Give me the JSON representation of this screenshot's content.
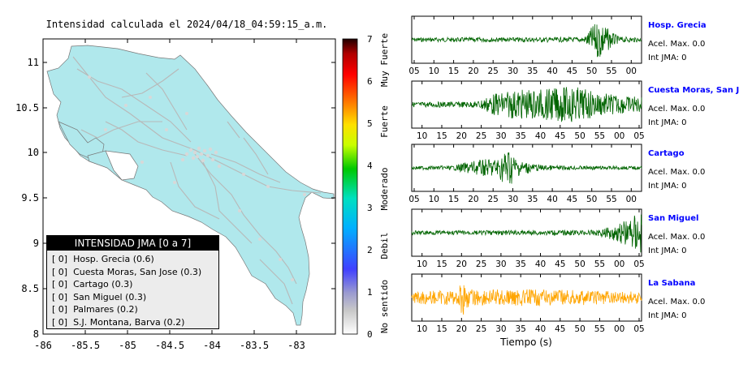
{
  "map": {
    "title": "Intensidad calculada el 2024/04/18_04:59:15_a.m.",
    "x_ticks": [
      "-86",
      "-85.5",
      "-85",
      "-84.5",
      "-84",
      "-83.5",
      "-83"
    ],
    "y_ticks": [
      "11",
      "10.5",
      "10",
      "9.5",
      "9",
      "8.5",
      "8"
    ],
    "land_color": "#b0e8ec",
    "road_color": "#b8b8b8"
  },
  "colorbar": {
    "ticks": [
      "7",
      "6",
      "5",
      "4",
      "3",
      "2",
      "1",
      "0"
    ],
    "category_labels": [
      "Muy Fuerte",
      "Fuerte",
      "Moderado",
      "Debil",
      "No sentido"
    ]
  },
  "legend": {
    "title": "INTENSIDAD JMA [0 a 7]",
    "items": [
      {
        "level": "[ 0]",
        "station": "Hosp. Grecia (0.6)"
      },
      {
        "level": "[ 0]",
        "station": "Cuesta Moras, San Jose (0.3)"
      },
      {
        "level": "[ 0]",
        "station": "Cartago (0.3)"
      },
      {
        "level": "[ 0]",
        "station": "San Miguel (0.3)"
      },
      {
        "level": "[ 0]",
        "station": "Palmares (0.2)"
      },
      {
        "level": "[ 0]",
        "station": "S.J. Montana, Barva (0.2)"
      }
    ]
  },
  "seismograms": {
    "xlabel": "Tiempo (s)",
    "station_color": "#0000ff",
    "panels": [
      {
        "station": "Hosp. Grecia",
        "acel": "Acel. Max. 0.0",
        "jma": "Int JMA: 0",
        "color": "#006400",
        "ticks": [
          "05",
          "10",
          "15",
          "20",
          "25",
          "30",
          "35",
          "40",
          "45",
          "50",
          "55",
          "00"
        ],
        "tick_align": "start",
        "envelope": [
          [
            0,
            0.1
          ],
          [
            0.75,
            0.12
          ],
          [
            0.79,
            0.7
          ],
          [
            0.82,
            1.0
          ],
          [
            0.86,
            0.45
          ],
          [
            0.9,
            0.15
          ],
          [
            1,
            0.1
          ]
        ]
      },
      {
        "station": "Cuesta Moras, San Jose",
        "acel": "Acel. Max. 0.0",
        "jma": "Int JMA: 0",
        "color": "#006400",
        "ticks": [
          "10",
          "15",
          "20",
          "25",
          "30",
          "35",
          "40",
          "45",
          "50",
          "55",
          "00",
          "05"
        ],
        "tick_align": "end",
        "envelope": [
          [
            0,
            0.12
          ],
          [
            0.28,
            0.15
          ],
          [
            0.35,
            0.5
          ],
          [
            0.45,
            0.7
          ],
          [
            0.6,
            0.75
          ],
          [
            0.7,
            0.9
          ],
          [
            0.8,
            0.6
          ],
          [
            0.9,
            0.45
          ],
          [
            1,
            0.35
          ]
        ]
      },
      {
        "station": "Cartago",
        "acel": "Acel. Max. 0.0",
        "jma": "Int JMA: 0",
        "color": "#006400",
        "ticks": [
          "05",
          "10",
          "15",
          "20",
          "25",
          "30",
          "35",
          "40",
          "45",
          "50",
          "55",
          "00"
        ],
        "tick_align": "start",
        "envelope": [
          [
            0,
            0.08
          ],
          [
            0.18,
            0.1
          ],
          [
            0.25,
            0.3
          ],
          [
            0.38,
            0.5
          ],
          [
            0.42,
            1.0
          ],
          [
            0.46,
            0.4
          ],
          [
            0.55,
            0.15
          ],
          [
            0.65,
            0.1
          ],
          [
            1,
            0.08
          ]
        ]
      },
      {
        "station": "San Miguel",
        "acel": "Acel. Max. 0.0",
        "jma": "Int JMA: 0",
        "color": "#006400",
        "ticks": [
          "10",
          "15",
          "20",
          "25",
          "30",
          "35",
          "40",
          "45",
          "50",
          "55",
          "00",
          "05"
        ],
        "tick_align": "end",
        "envelope": [
          [
            0,
            0.1
          ],
          [
            0.78,
            0.12
          ],
          [
            0.85,
            0.25
          ],
          [
            0.92,
            0.55
          ],
          [
            0.97,
            0.9
          ],
          [
            1,
            1.0
          ]
        ]
      },
      {
        "station": "La Sabana",
        "acel": "Acel. Max. 0.0",
        "jma": "Int JMA: 0",
        "color": "#ffa500",
        "ticks": [
          "10",
          "15",
          "20",
          "25",
          "30",
          "35",
          "40",
          "45",
          "50",
          "55",
          "00",
          "05"
        ],
        "tick_align": "end",
        "envelope": [
          [
            0,
            0.3
          ],
          [
            0.2,
            0.35
          ],
          [
            0.22,
            0.95
          ],
          [
            0.25,
            0.4
          ],
          [
            0.5,
            0.4
          ],
          [
            1,
            0.3
          ]
        ]
      }
    ]
  }
}
